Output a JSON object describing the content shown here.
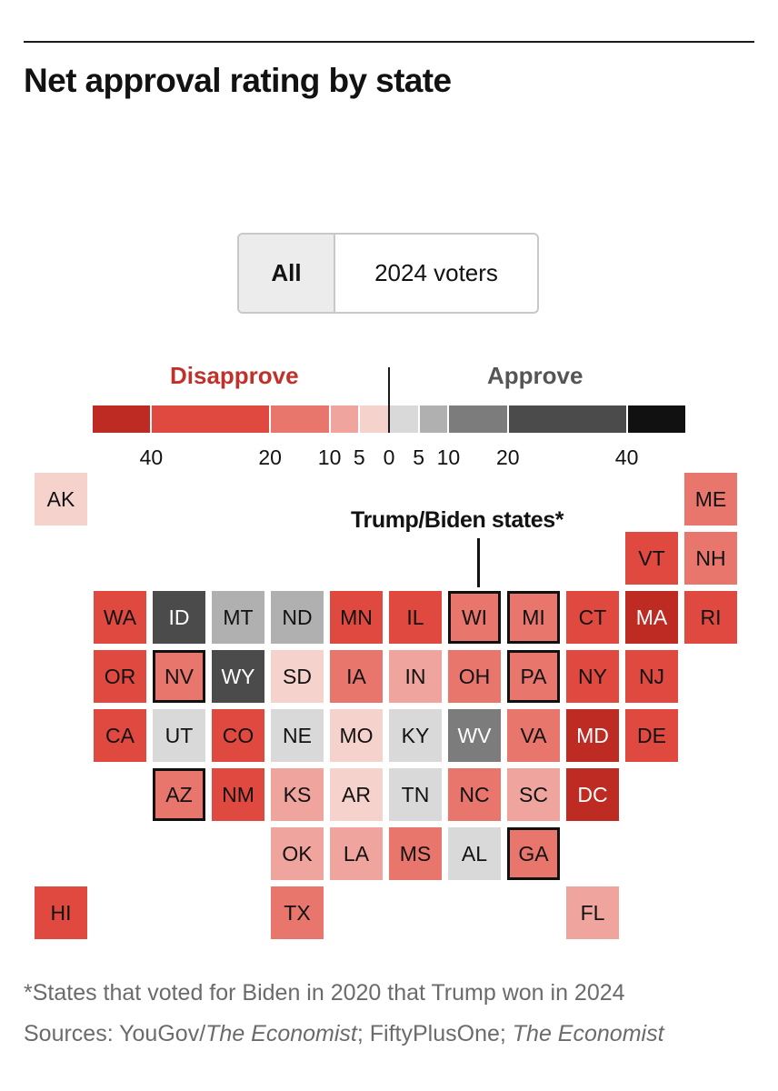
{
  "chart_data": {
    "type": "heatmap",
    "title": "Net approval rating by state",
    "toggle": {
      "options": [
        "All",
        "2024 voters"
      ],
      "selected": "All"
    },
    "legend": {
      "disapprove_label": "Disapprove",
      "approve_label": "Approve",
      "bins": [
        {
          "side": "disapprove",
          "range": [
            -50,
            -40
          ],
          "color": "#be2b22"
        },
        {
          "side": "disapprove",
          "range": [
            -40,
            -20
          ],
          "color": "#e0493f"
        },
        {
          "side": "disapprove",
          "range": [
            -20,
            -10
          ],
          "color": "#e8766d"
        },
        {
          "side": "disapprove",
          "range": [
            -10,
            -5
          ],
          "color": "#efa49d"
        },
        {
          "side": "disapprove",
          "range": [
            -5,
            0
          ],
          "color": "#f6d2cd"
        },
        {
          "side": "approve",
          "range": [
            0,
            5
          ],
          "color": "#d9d9d9"
        },
        {
          "side": "approve",
          "range": [
            5,
            10
          ],
          "color": "#b0b0b0"
        },
        {
          "side": "approve",
          "range": [
            10,
            20
          ],
          "color": "#7c7c7c"
        },
        {
          "side": "approve",
          "range": [
            20,
            40
          ],
          "color": "#4b4b4b"
        },
        {
          "side": "approve",
          "range": [
            40,
            50
          ],
          "color": "#111111"
        }
      ],
      "tick_labels": [
        "40",
        "20",
        "10",
        "5",
        "0",
        "5",
        "10",
        "20",
        "40"
      ],
      "tick_values": [
        -40,
        -20,
        -10,
        -5,
        0,
        5,
        10,
        20,
        40
      ]
    },
    "annotation": "Trump/Biden states*",
    "states": [
      {
        "abbr": "AK",
        "row": 0,
        "col": 0,
        "bin": 4
      },
      {
        "abbr": "ME",
        "row": 0,
        "col": 11,
        "bin": 2
      },
      {
        "abbr": "VT",
        "row": 1,
        "col": 10,
        "bin": 1
      },
      {
        "abbr": "NH",
        "row": 1,
        "col": 11,
        "bin": 2
      },
      {
        "abbr": "WA",
        "row": 2,
        "col": 1,
        "bin": 1
      },
      {
        "abbr": "ID",
        "row": 2,
        "col": 2,
        "bin": 8
      },
      {
        "abbr": "MT",
        "row": 2,
        "col": 3,
        "bin": 6
      },
      {
        "abbr": "ND",
        "row": 2,
        "col": 4,
        "bin": 6
      },
      {
        "abbr": "MN",
        "row": 2,
        "col": 5,
        "bin": 1
      },
      {
        "abbr": "IL",
        "row": 2,
        "col": 6,
        "bin": 1
      },
      {
        "abbr": "WI",
        "row": 2,
        "col": 7,
        "bin": 2,
        "trump_biden": true
      },
      {
        "abbr": "MI",
        "row": 2,
        "col": 8,
        "bin": 2,
        "trump_biden": true
      },
      {
        "abbr": "CT",
        "row": 2,
        "col": 9,
        "bin": 1
      },
      {
        "abbr": "MA",
        "row": 2,
        "col": 10,
        "bin": 0
      },
      {
        "abbr": "RI",
        "row": 2,
        "col": 11,
        "bin": 1
      },
      {
        "abbr": "OR",
        "row": 3,
        "col": 1,
        "bin": 1
      },
      {
        "abbr": "NV",
        "row": 3,
        "col": 2,
        "bin": 2,
        "trump_biden": true
      },
      {
        "abbr": "WY",
        "row": 3,
        "col": 3,
        "bin": 8
      },
      {
        "abbr": "SD",
        "row": 3,
        "col": 4,
        "bin": 4
      },
      {
        "abbr": "IA",
        "row": 3,
        "col": 5,
        "bin": 2
      },
      {
        "abbr": "IN",
        "row": 3,
        "col": 6,
        "bin": 3
      },
      {
        "abbr": "OH",
        "row": 3,
        "col": 7,
        "bin": 2
      },
      {
        "abbr": "PA",
        "row": 3,
        "col": 8,
        "bin": 2,
        "trump_biden": true
      },
      {
        "abbr": "NY",
        "row": 3,
        "col": 9,
        "bin": 1
      },
      {
        "abbr": "NJ",
        "row": 3,
        "col": 10,
        "bin": 1
      },
      {
        "abbr": "CA",
        "row": 4,
        "col": 1,
        "bin": 1
      },
      {
        "abbr": "UT",
        "row": 4,
        "col": 2,
        "bin": 5
      },
      {
        "abbr": "CO",
        "row": 4,
        "col": 3,
        "bin": 1
      },
      {
        "abbr": "NE",
        "row": 4,
        "col": 4,
        "bin": 5
      },
      {
        "abbr": "MO",
        "row": 4,
        "col": 5,
        "bin": 4
      },
      {
        "abbr": "KY",
        "row": 4,
        "col": 6,
        "bin": 5
      },
      {
        "abbr": "WV",
        "row": 4,
        "col": 7,
        "bin": 7
      },
      {
        "abbr": "VA",
        "row": 4,
        "col": 8,
        "bin": 2
      },
      {
        "abbr": "MD",
        "row": 4,
        "col": 9,
        "bin": 0
      },
      {
        "abbr": "DE",
        "row": 4,
        "col": 10,
        "bin": 1
      },
      {
        "abbr": "AZ",
        "row": 5,
        "col": 2,
        "bin": 2,
        "trump_biden": true
      },
      {
        "abbr": "NM",
        "row": 5,
        "col": 3,
        "bin": 1
      },
      {
        "abbr": "KS",
        "row": 5,
        "col": 4,
        "bin": 3
      },
      {
        "abbr": "AR",
        "row": 5,
        "col": 5,
        "bin": 4
      },
      {
        "abbr": "TN",
        "row": 5,
        "col": 6,
        "bin": 5
      },
      {
        "abbr": "NC",
        "row": 5,
        "col": 7,
        "bin": 2
      },
      {
        "abbr": "SC",
        "row": 5,
        "col": 8,
        "bin": 3
      },
      {
        "abbr": "DC",
        "row": 5,
        "col": 9,
        "bin": 0
      },
      {
        "abbr": "OK",
        "row": 6,
        "col": 4,
        "bin": 3
      },
      {
        "abbr": "LA",
        "row": 6,
        "col": 5,
        "bin": 3
      },
      {
        "abbr": "MS",
        "row": 6,
        "col": 6,
        "bin": 2
      },
      {
        "abbr": "AL",
        "row": 6,
        "col": 7,
        "bin": 5
      },
      {
        "abbr": "GA",
        "row": 6,
        "col": 8,
        "bin": 2,
        "trump_biden": true
      },
      {
        "abbr": "HI",
        "row": 7,
        "col": 0,
        "bin": 1
      },
      {
        "abbr": "TX",
        "row": 7,
        "col": 4,
        "bin": 2
      },
      {
        "abbr": "FL",
        "row": 7,
        "col": 9,
        "bin": 3
      }
    ],
    "footnote": "*States that voted for Biden in 2020 that Trump won in 2024",
    "sources": {
      "prefix": "Sources: YouGov/",
      "italic1": "The Economist",
      "middle": "; FiftyPlusOne; ",
      "italic2": "The Economist"
    }
  }
}
